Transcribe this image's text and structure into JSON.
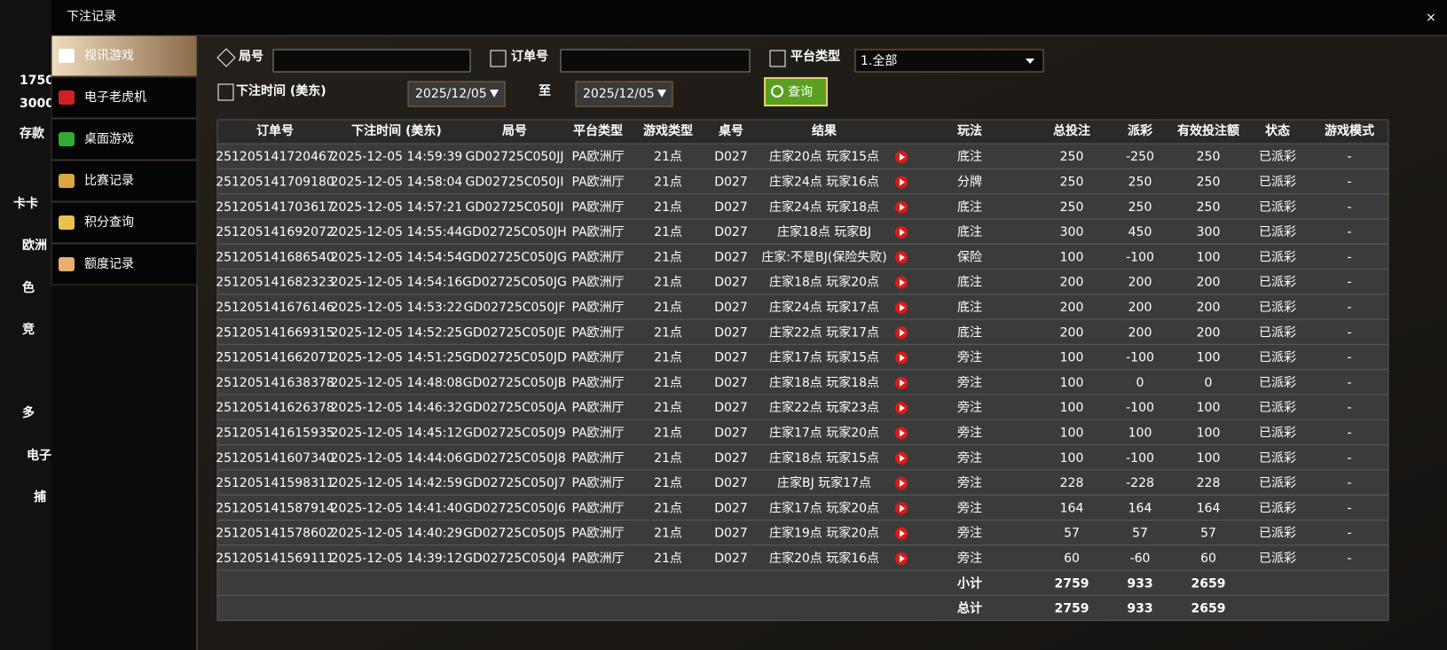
{
  "header": {
    "title": "下注记录",
    "close": "×"
  },
  "background": {
    "fragments": [
      "1750",
      "3000",
      "存款",
      "卡卡",
      "欧洲",
      "色",
      "竞",
      "多",
      "电子",
      "捕"
    ]
  },
  "sidebar": {
    "items": [
      "视讯游戏",
      "电子老虎机",
      "桌面游戏",
      "比赛记录",
      "积分查询",
      "额度记录"
    ]
  },
  "filters": {
    "round_label": "局号",
    "order_label": "订单号",
    "platform_label": "平台类型",
    "platform_value": "1.全部",
    "time_label": "下注时间 (美东)",
    "date_from": "2025/12/05",
    "to": "至",
    "date_to": "2025/12/05",
    "query": "查询"
  },
  "table": {
    "columns": [
      "订单号",
      "下注时间 (美东)",
      "局号",
      "平台类型",
      "游戏类型",
      "桌号",
      "结果",
      "玩法",
      "总投注",
      "派彩",
      "有效投注额",
      "状态",
      "游戏模式"
    ],
    "rows": [
      [
        "251205141720467",
        "2025-12-05 14:59:39",
        "GD02725C050JJ",
        "PA欧洲厅",
        "21点",
        "D027",
        "庄家20点 玩家15点",
        "底注",
        250,
        -250,
        250,
        "已派彩",
        "-"
      ],
      [
        "251205141709180",
        "2025-12-05 14:58:04",
        "GD02725C050JI",
        "PA欧洲厅",
        "21点",
        "D027",
        "庄家24点 玩家16点",
        "分牌",
        250,
        250,
        250,
        "已派彩",
        "-"
      ],
      [
        "251205141703617",
        "2025-12-05 14:57:21",
        "GD02725C050JI",
        "PA欧洲厅",
        "21点",
        "D027",
        "庄家24点 玩家18点",
        "底注",
        250,
        250,
        250,
        "已派彩",
        "-"
      ],
      [
        "251205141692072",
        "2025-12-05 14:55:44",
        "GD02725C050JH",
        "PA欧洲厅",
        "21点",
        "D027",
        "庄家18点 玩家BJ",
        "底注",
        300,
        450,
        300,
        "已派彩",
        "-"
      ],
      [
        "251205141686540",
        "2025-12-05 14:54:54",
        "GD02725C050JG",
        "PA欧洲厅",
        "21点",
        "D027",
        "庄家:不是BJ(保险失败)",
        "保险",
        100,
        -100,
        100,
        "已派彩",
        "-"
      ],
      [
        "251205141682323",
        "2025-12-05 14:54:16",
        "GD02725C050JG",
        "PA欧洲厅",
        "21点",
        "D027",
        "庄家18点 玩家20点",
        "底注",
        200,
        200,
        200,
        "已派彩",
        "-"
      ],
      [
        "251205141676146",
        "2025-12-05 14:53:22",
        "GD02725C050JF",
        "PA欧洲厅",
        "21点",
        "D027",
        "庄家24点 玩家17点",
        "底注",
        200,
        200,
        200,
        "已派彩",
        "-"
      ],
      [
        "251205141669315",
        "2025-12-05 14:52:25",
        "GD02725C050JE",
        "PA欧洲厅",
        "21点",
        "D027",
        "庄家22点 玩家17点",
        "底注",
        200,
        200,
        200,
        "已派彩",
        "-"
      ],
      [
        "251205141662071",
        "2025-12-05 14:51:25",
        "GD02725C050JD",
        "PA欧洲厅",
        "21点",
        "D027",
        "庄家17点 玩家15点",
        "旁注",
        100,
        -100,
        100,
        "已派彩",
        "-"
      ],
      [
        "251205141638378",
        "2025-12-05 14:48:08",
        "GD02725C050JB",
        "PA欧洲厅",
        "21点",
        "D027",
        "庄家18点 玩家18点",
        "旁注",
        100,
        0,
        0,
        "已派彩",
        "-"
      ],
      [
        "251205141626378",
        "2025-12-05 14:46:32",
        "GD02725C050JA",
        "PA欧洲厅",
        "21点",
        "D027",
        "庄家22点 玩家23点",
        "旁注",
        100,
        -100,
        100,
        "已派彩",
        "-"
      ],
      [
        "251205141615935",
        "2025-12-05 14:45:12",
        "GD02725C050J9",
        "PA欧洲厅",
        "21点",
        "D027",
        "庄家17点 玩家20点",
        "旁注",
        100,
        100,
        100,
        "已派彩",
        "-"
      ],
      [
        "251205141607340",
        "2025-12-05 14:44:06",
        "GD02725C050J8",
        "PA欧洲厅",
        "21点",
        "D027",
        "庄家18点 玩家15点",
        "旁注",
        100,
        -100,
        100,
        "已派彩",
        "-"
      ],
      [
        "251205141598311",
        "2025-12-05 14:42:59",
        "GD02725C050J7",
        "PA欧洲厅",
        "21点",
        "D027",
        "庄家BJ 玩家17点",
        "旁注",
        228,
        -228,
        228,
        "已派彩",
        "-"
      ],
      [
        "251205141587914",
        "2025-12-05 14:41:40",
        "GD02725C050J6",
        "PA欧洲厅",
        "21点",
        "D027",
        "庄家17点 玩家20点",
        "旁注",
        164,
        164,
        164,
        "已派彩",
        "-"
      ],
      [
        "251205141578602",
        "2025-12-05 14:40:29",
        "GD02725C050J5",
        "PA欧洲厅",
        "21点",
        "D027",
        "庄家19点 玩家20点",
        "旁注",
        57,
        57,
        57,
        "已派彩",
        "-"
      ],
      [
        "251205141569111",
        "2025-12-05 14:39:12",
        "GD02725C050J4",
        "PA欧洲厅",
        "21点",
        "D027",
        "庄家20点 玩家16点",
        "旁注",
        60,
        -60,
        60,
        "已派彩",
        "-"
      ]
    ],
    "summary": [
      [
        "小计",
        2759,
        933,
        2659
      ],
      [
        "总计",
        2759,
        933,
        2659
      ]
    ]
  }
}
